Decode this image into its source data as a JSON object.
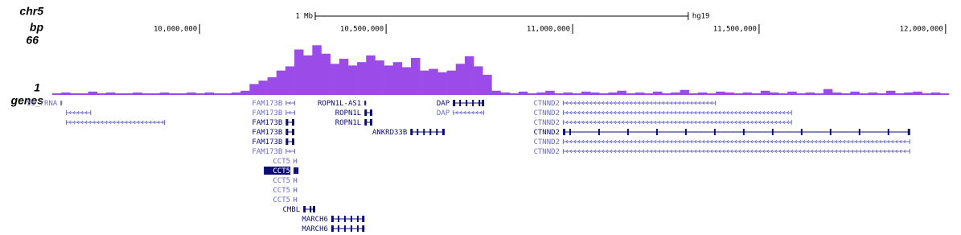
{
  "chart_data": {
    "type": "genome-browser",
    "track_labels": {
      "chrom": "chr5",
      "units": "bp",
      "genes": "genes"
    },
    "scale_bar": {
      "label": "1 Mb",
      "length": 1000000,
      "assembly": "hg19"
    },
    "xlim": [
      9605000,
      12009000
    ],
    "xticks": [
      {
        "value": 10000000,
        "label": "10,000,000"
      },
      {
        "value": 10500000,
        "label": "10,500,000"
      },
      {
        "value": 11000000,
        "label": "11,000,000"
      },
      {
        "value": 11500000,
        "label": "11,500,000"
      },
      {
        "value": 12000000,
        "label": "12,000,000"
      }
    ],
    "signal": {
      "color": "#9b4ce8",
      "viewlimits": [
        1,
        66
      ],
      "values": [
        3,
        4,
        3,
        3,
        5,
        3,
        4,
        3,
        3,
        4,
        3,
        3,
        4,
        3,
        3,
        4,
        3,
        4,
        3,
        3,
        4,
        6,
        14,
        18,
        22,
        30,
        35,
        55,
        48,
        60,
        50,
        38,
        44,
        36,
        40,
        48,
        42,
        36,
        40,
        34,
        45,
        30,
        32,
        28,
        30,
        38,
        47,
        35,
        25,
        6,
        4,
        3,
        5,
        3,
        4,
        6,
        3,
        4,
        3,
        5,
        4,
        3,
        4,
        6,
        3,
        4,
        3,
        5,
        3,
        4,
        7,
        3,
        4,
        3,
        5,
        4,
        3,
        4,
        3,
        6,
        4,
        3,
        5,
        3,
        4,
        3,
        8,
        4,
        3,
        5,
        3,
        4,
        3,
        6,
        3,
        4,
        5,
        3,
        4,
        3
      ]
    },
    "genes": [
      {
        "name": "5S_rRNA",
        "start": 9627000,
        "end": 9631000,
        "color": "#6c6cc8",
        "thick": false
      },
      {
        "name": null,
        "start": 9642000,
        "end": 9709000,
        "color": "#6c6cc8",
        "thick": false
      },
      {
        "name": null,
        "start": 9642000,
        "end": 9907000,
        "color": "#6c6cc8",
        "thick": false
      },
      {
        "name": "FAM173B",
        "start": 10231000,
        "end": 10256000,
        "color": "#6c6cc8",
        "thick": false
      },
      {
        "name": "FAM173B",
        "start": 10231000,
        "end": 10256000,
        "color": "#6c6cc8",
        "thick": false
      },
      {
        "name": "FAM173B",
        "start": 10231000,
        "end": 10254000,
        "color": "#0c0c78",
        "thick": true
      },
      {
        "name": "FAM173B",
        "start": 10231000,
        "end": 10254000,
        "color": "#0c0c78",
        "thick": true
      },
      {
        "name": "FAM173B",
        "start": 10231000,
        "end": 10254000,
        "color": "#0c0c78",
        "thick": true
      },
      {
        "name": "FAM173B",
        "start": 10231000,
        "end": 10256000,
        "color": "#6c6cc8",
        "thick": false
      },
      {
        "name": "ROPN1L-AS1",
        "start": 10442000,
        "end": 10446000,
        "color": "#0c0c78",
        "thick": false
      },
      {
        "name": "ROPN1L",
        "start": 10442000,
        "end": 10463000,
        "color": "#0c0c78",
        "thick": true
      },
      {
        "name": "ROPN1L",
        "start": 10442000,
        "end": 10463000,
        "color": "#0c0c78",
        "thick": true
      },
      {
        "name": "DAP",
        "start": 10679000,
        "end": 10763000,
        "color": "#0c0c78",
        "thick": true
      },
      {
        "name": "DAP",
        "start": 10679000,
        "end": 10763000,
        "color": "#6c6cc8",
        "thick": false
      },
      {
        "name": "ANKRD33B",
        "start": 10565000,
        "end": 10657000,
        "color": "#0c0c78",
        "thick": true
      },
      {
        "name": "CTNND2",
        "start": 10974000,
        "end": 11384000,
        "color": "#6c6cc8",
        "thick": false
      },
      {
        "name": "CTNND2",
        "start": 10974000,
        "end": 11588000,
        "color": "#6c6cc8",
        "thick": false
      },
      {
        "name": "CTNND2",
        "start": 10974000,
        "end": 11588000,
        "color": "#6c6cc8",
        "thick": false
      },
      {
        "name": "CTNND2",
        "start": 10974000,
        "end": 11905000,
        "color": "#0c0c78",
        "thick": true
      },
      {
        "name": "CTNND2",
        "start": 10974000,
        "end": 11905000,
        "color": "#6c6cc8",
        "thick": false
      },
      {
        "name": "CTNND2",
        "start": 10974000,
        "end": 11905000,
        "color": "#6c6cc8",
        "thick": false
      },
      {
        "name": "CCT5",
        "start": 10252000,
        "end": 10261000,
        "color": "#6c6cc8",
        "thick": false
      },
      {
        "name": "CCT5",
        "start": 10252000,
        "end": 10265000,
        "color": "#0c0c78",
        "thick": true,
        "highlighted": true
      },
      {
        "name": "CCT5",
        "start": 10252000,
        "end": 10261000,
        "color": "#6c6cc8",
        "thick": false
      },
      {
        "name": "CCT5",
        "start": 10252000,
        "end": 10261000,
        "color": "#6c6cc8",
        "thick": false
      },
      {
        "name": "CCT5",
        "start": 10252000,
        "end": 10261000,
        "color": "#6c6cc8",
        "thick": false
      },
      {
        "name": "CMBL",
        "start": 10278000,
        "end": 10310000,
        "color": "#0c0c78",
        "thick": true
      },
      {
        "name": "MARCH6",
        "start": 10353000,
        "end": 10442000,
        "color": "#0c0c78",
        "thick": true
      },
      {
        "name": "MARCH6",
        "start": 10353000,
        "end": 10442000,
        "color": "#0c0c78",
        "thick": true
      }
    ]
  }
}
